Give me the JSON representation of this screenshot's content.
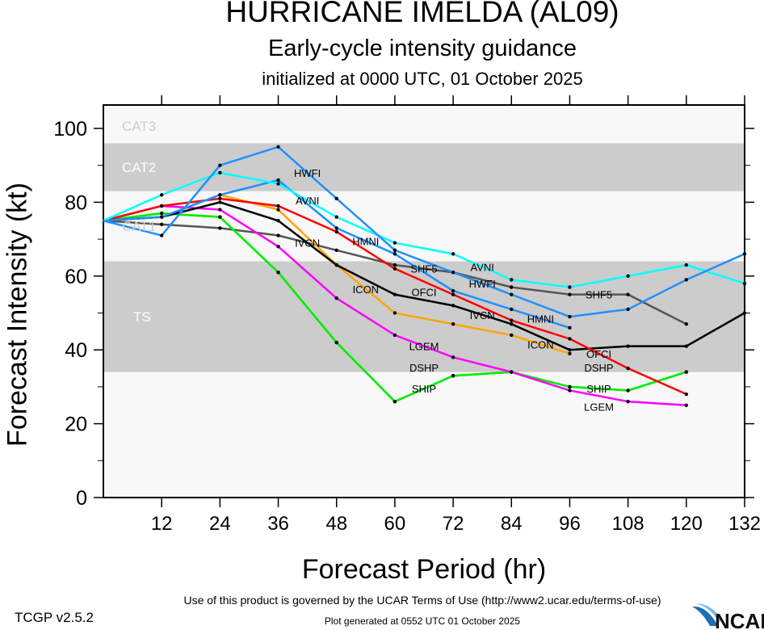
{
  "title": "HURRICANE IMELDA (AL09)",
  "subtitle": "Early-cycle intensity guidance",
  "init_line": "initialized at 0000 UTC, 01 October 2025",
  "terms": "Use of this product is governed by the UCAR Terms of Use (http://www2.ucar.edu/terms-of-use)",
  "generated": "Plot generated at 0552 UTC   01 October 2025",
  "version": "TCGP v2.5.2",
  "logo_text": "NCAR",
  "chart_data": {
    "type": "line",
    "title": "HURRICANE IMELDA (AL09)",
    "xlabel": "Forecast Period (hr)",
    "ylabel": "Forecast Intensity (kt)",
    "xlim": [
      0,
      132
    ],
    "ylim": [
      0,
      100
    ],
    "xticks": [
      12,
      24,
      36,
      48,
      60,
      72,
      84,
      96,
      108,
      120,
      132
    ],
    "yticks": [
      0,
      20,
      40,
      60,
      80,
      100
    ],
    "grid": false,
    "legend": "none (inline labels)",
    "bands": [
      {
        "name": "TS",
        "from": 34,
        "to": 64,
        "color": "#cccccc",
        "label_color": "#ffffff"
      },
      {
        "name": "CAT1",
        "from": 64,
        "to": 83,
        "color": "#f8f8f8",
        "label_color": "#cccccc"
      },
      {
        "name": "CAT2",
        "from": 83,
        "to": 96,
        "color": "#cccccc",
        "label_color": "#ffffff"
      },
      {
        "name": "CAT3",
        "from": 96,
        "to": 100,
        "color": "#f8f8f8",
        "label_color": "#cccccc"
      }
    ],
    "background": "#f8f8f8",
    "x": [
      0,
      12,
      24,
      36,
      48,
      60,
      72,
      84,
      96,
      108,
      120,
      132
    ],
    "series": [
      {
        "name": "SHF5",
        "color": "#555555",
        "values": [
          75,
          74,
          73,
          71,
          67,
          63,
          61,
          57,
          55,
          55,
          47,
          null
        ]
      },
      {
        "name": "SHIP",
        "color": "#00ee00",
        "values": [
          75,
          77,
          76,
          61,
          42,
          26,
          33,
          34,
          30,
          29,
          34,
          null
        ]
      },
      {
        "name": "DSHP",
        "color": "#00ee00",
        "values": [
          75,
          77,
          76,
          61,
          42,
          26,
          33,
          34,
          30,
          29,
          34,
          null
        ]
      },
      {
        "name": "LGEM",
        "color": "#ff00ff",
        "values": [
          75,
          79,
          78,
          68,
          54,
          44,
          38,
          34,
          29,
          26,
          25,
          null
        ]
      },
      {
        "name": "ICON",
        "color": "#ffa500",
        "values": [
          75,
          76,
          82,
          78,
          63,
          50,
          47,
          44,
          39,
          null,
          null,
          null
        ]
      },
      {
        "name": "IVCN",
        "color": "#000000",
        "values": [
          75,
          76,
          80,
          75,
          63,
          55,
          52,
          47,
          40,
          41,
          41,
          50
        ]
      },
      {
        "name": "OFCI",
        "color": "#ff0000",
        "values": [
          75,
          79,
          81,
          79,
          72,
          62,
          55,
          48,
          43,
          35,
          28,
          null
        ]
      },
      {
        "name": "HMNI",
        "color": "#1e90ff",
        "values": [
          75,
          76,
          82,
          86,
          73,
          66,
          56,
          51,
          46,
          null,
          null,
          null
        ]
      },
      {
        "name": "AVNI",
        "color": "#00ffff",
        "values": [
          75,
          82,
          88,
          85,
          76,
          69,
          66,
          59,
          57,
          60,
          63,
          58
        ]
      },
      {
        "name": "HWFI",
        "color": "#1e90ff",
        "values": [
          75,
          71,
          90,
          95,
          81,
          67,
          61,
          55,
          49,
          51,
          59,
          66
        ]
      }
    ]
  }
}
